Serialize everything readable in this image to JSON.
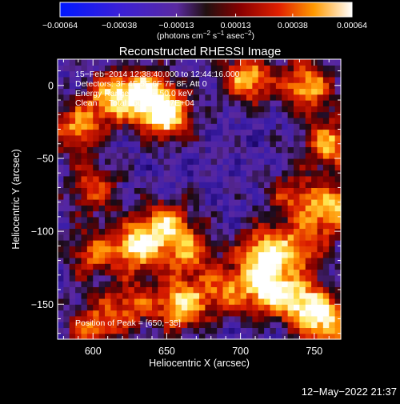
{
  "chart_data": {
    "type": "heatmap",
    "title": "Reconstructed RHESSI Image",
    "xlabel": "Heliocentric X (arcsec)",
    "ylabel": "Heliocentric Y (arcsec)",
    "xlim": [
      576,
      768
    ],
    "ylim": [
      -174,
      18
    ],
    "x_ticks": [
      600,
      650,
      700,
      750
    ],
    "y_ticks": [
      0,
      -50,
      -100,
      -150
    ],
    "x_tick_labels": [
      "600",
      "650",
      "700",
      "750"
    ],
    "y_tick_labels": [
      "0",
      "−50",
      "−100",
      "−150"
    ],
    "colorbar": {
      "range": [
        -0.00064,
        0.00064
      ],
      "ticks": [
        -0.00064,
        -0.00038,
        -0.00013,
        0.00013,
        0.00038,
        0.00064
      ],
      "tick_labels": [
        "−0.00064",
        "−0.00038",
        "−0.00013",
        "0.00013",
        "0.00038",
        "0.00064"
      ],
      "unit_prefix": "(photons cm",
      "unit_exp1": "−2",
      "unit_mid1": " s",
      "unit_exp2": "−1",
      "unit_mid2": " asec",
      "unit_exp3": "−2",
      "unit_suffix": ")"
    },
    "annotations": [
      "15−Feb−2014 12:38:40.000 to 12:44:16.000",
      "Detectors: 3F 4F 5F 6F 7F 8F, Att 0",
      "Energy Range: 25.0 − 50.0 keV",
      "Clean     Total counts: 2.57E+04"
    ],
    "peak_label": "Position of Peak = [650,−35]",
    "peak": [
      650,
      -35
    ],
    "hotspots": [
      {
        "x": 650,
        "y": -20,
        "v": 1.0
      },
      {
        "x": 635,
        "y": -5,
        "v": 0.85
      },
      {
        "x": 612,
        "y": -8,
        "v": 0.75
      },
      {
        "x": 590,
        "y": -30,
        "v": 0.7
      },
      {
        "x": 600,
        "y": -70,
        "v": 0.55
      },
      {
        "x": 705,
        "y": 5,
        "v": 0.8
      },
      {
        "x": 745,
        "y": 0,
        "v": 0.8
      },
      {
        "x": 760,
        "y": -40,
        "v": 0.75
      },
      {
        "x": 762,
        "y": -85,
        "v": 0.85
      },
      {
        "x": 735,
        "y": -75,
        "v": 0.5
      },
      {
        "x": 650,
        "y": -95,
        "v": 0.7
      },
      {
        "x": 630,
        "y": -110,
        "v": 0.9
      },
      {
        "x": 665,
        "y": -115,
        "v": 0.6
      },
      {
        "x": 600,
        "y": -115,
        "v": 0.55
      },
      {
        "x": 715,
        "y": -115,
        "v": 0.85
      },
      {
        "x": 740,
        "y": -110,
        "v": 0.6
      },
      {
        "x": 720,
        "y": -140,
        "v": 0.95
      },
      {
        "x": 745,
        "y": -150,
        "v": 0.85
      },
      {
        "x": 690,
        "y": -140,
        "v": 0.6
      },
      {
        "x": 660,
        "y": -150,
        "v": 0.9
      },
      {
        "x": 625,
        "y": -150,
        "v": 0.55
      },
      {
        "x": 600,
        "y": -165,
        "v": 0.6
      },
      {
        "x": 760,
        "y": -165,
        "v": 0.7
      }
    ]
  },
  "timestamp": "12−May−2022 21:37"
}
